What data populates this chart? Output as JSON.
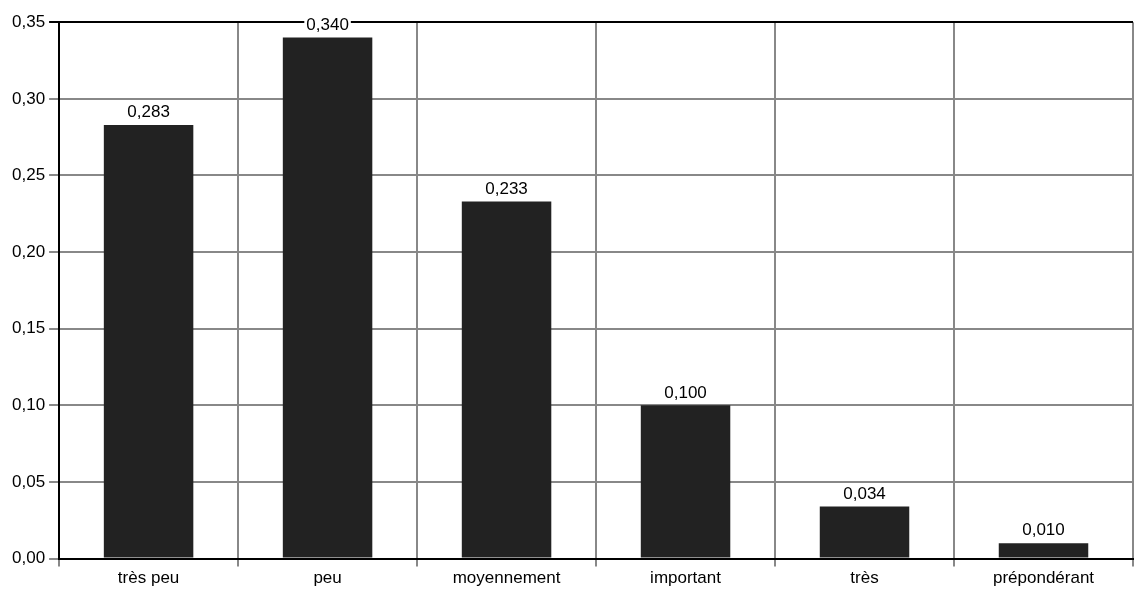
{
  "chart_data": {
    "type": "bar",
    "categories": [
      "très peu",
      "peu",
      "moyennement",
      "important",
      "très",
      "prépondérant"
    ],
    "values": [
      0.283,
      0.34,
      0.233,
      0.1,
      0.034,
      0.01
    ],
    "value_labels": [
      "0,283",
      "0,340",
      "0,233",
      "0,100",
      "0,034",
      "0,010"
    ],
    "color": "#222222",
    "ylim": [
      0,
      0.35
    ],
    "yticks": [
      {
        "value": 0,
        "label": "0,00"
      },
      {
        "value": 0.05,
        "label": "0,05"
      },
      {
        "value": 0.1,
        "label": "0,10"
      },
      {
        "value": 0.15,
        "label": "0,15"
      },
      {
        "value": 0.2,
        "label": "0,20"
      },
      {
        "value": 0.25,
        "label": "0,25"
      },
      {
        "value": 0.3,
        "label": "0,30"
      },
      {
        "value": 0.35,
        "label": "0,35"
      }
    ],
    "grid": true
  }
}
